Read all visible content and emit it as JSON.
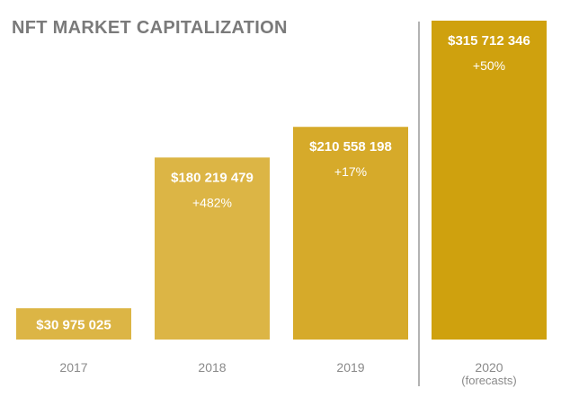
{
  "chart_data": {
    "type": "bar",
    "title": "NFT MARKET CAPITALIZATION",
    "categories": [
      "2017",
      "2018",
      "2019",
      "2020"
    ],
    "category_notes": [
      "",
      "",
      "",
      "(forecasts)"
    ],
    "values": [
      30975025,
      180219479,
      210558198,
      315712346
    ],
    "value_labels": [
      "$30 975 025",
      "$180 219 479",
      "$210 558 198",
      "$315 712 346"
    ],
    "change_labels": [
      "",
      "+482%",
      "+17%",
      "+50%"
    ],
    "colors": [
      "#dcb545",
      "#dcb545",
      "#d6aa2a",
      "#cfa10e"
    ],
    "ylim": [
      0,
      315712346
    ],
    "grid": false,
    "separator_before_category": "2020"
  }
}
